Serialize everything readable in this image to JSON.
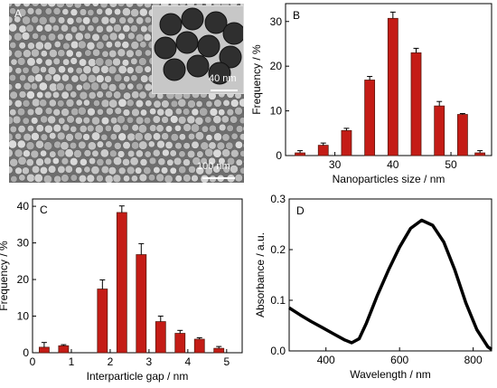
{
  "panels": {
    "a": {
      "letter": "A",
      "main_scale": "100 nm",
      "inset_scale": "40 nm"
    },
    "b": {
      "letter": "B"
    },
    "c": {
      "letter": "C"
    },
    "d": {
      "letter": "D"
    }
  },
  "colors": {
    "bar_fill": "#c41c16",
    "bar_edge": "#5a1a10",
    "error": "#000000",
    "curve": "#000000"
  },
  "chart_data": [
    {
      "id": "b",
      "type": "bar",
      "xlabel": "Nanoparticles size / nm",
      "ylabel": "Frequency / %",
      "x": [
        24,
        28,
        32,
        36,
        40,
        44,
        48,
        52
      ],
      "values": [
        0.6,
        2.3,
        5.6,
        16.9,
        30.7,
        23.0,
        11.1,
        9.2
      ],
      "errors": [
        0.5,
        0.5,
        0.5,
        0.8,
        1.4,
        1.0,
        1.0,
        0.2
      ],
      "extra_x": 55,
      "extra_value": 0.6,
      "extra_error": 0.5,
      "xlim": [
        21.5,
        57
      ],
      "ylim": [
        0,
        34
      ],
      "xticks": [
        30,
        40,
        50
      ],
      "yticks": [
        0,
        10,
        20,
        30
      ]
    },
    {
      "id": "c",
      "type": "bar",
      "xlabel": "Interparticle gap / nm",
      "ylabel": "Frequency / %",
      "x": [
        0.3,
        0.8,
        1.3,
        1.8,
        2.3,
        2.8,
        3.3,
        3.8,
        4.3,
        4.8,
        5.3
      ],
      "values": [
        1.5,
        1.9,
        0,
        17.4,
        38.3,
        26.8,
        8.5,
        5.3,
        3.7,
        1.2,
        0
      ],
      "errors": [
        1.3,
        0.3,
        0,
        2.5,
        1.8,
        3.0,
        1.5,
        0.8,
        0.4,
        0.5,
        0
      ],
      "xlim": [
        0,
        5.4
      ],
      "ylim": [
        0,
        42
      ],
      "xticks": [
        0,
        1,
        2,
        3,
        4,
        5
      ],
      "yticks": [
        0,
        10,
        20,
        30,
        40
      ]
    },
    {
      "id": "d",
      "type": "line",
      "xlabel": "Wavelength / nm",
      "ylabel": "Absorbance / a.u.",
      "x": [
        300,
        330,
        360,
        390,
        420,
        450,
        470,
        490,
        510,
        540,
        570,
        600,
        630,
        660,
        690,
        720,
        750,
        780,
        810,
        840,
        850
      ],
      "y": [
        0.085,
        0.071,
        0.058,
        0.046,
        0.034,
        0.022,
        0.016,
        0.024,
        0.055,
        0.11,
        0.16,
        0.205,
        0.242,
        0.258,
        0.248,
        0.215,
        0.16,
        0.095,
        0.042,
        0.008,
        0.003
      ],
      "xlim": [
        300,
        850
      ],
      "ylim": [
        0,
        0.3
      ],
      "xticks": [
        400,
        600,
        800
      ],
      "yticks": [
        0.0,
        0.1,
        0.2,
        0.3
      ],
      "ytick_labels": [
        "0.0",
        "0.1",
        "0.2",
        "0.3"
      ]
    }
  ]
}
